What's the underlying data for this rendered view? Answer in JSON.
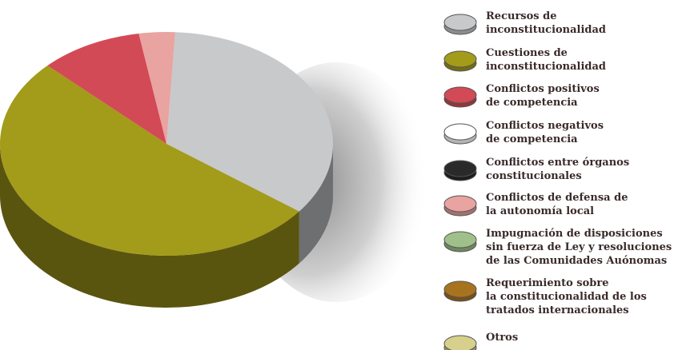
{
  "chart_data": {
    "type": "pie3d",
    "series": [
      {
        "name": "Recursos de\ninconstitucionalidad",
        "color": "#c8c9cb",
        "value": 34.5
      },
      {
        "name": "Cuestiones de\ninconstitucionalidad",
        "color": "#a39b1a",
        "value": 52
      },
      {
        "name": "Conflictos positivos\nde competencia",
        "color": "#d24a55",
        "value": 10
      },
      {
        "name": "Conflictos negativos\nde competencia",
        "color": "#ffffff",
        "value": 0
      },
      {
        "name": "Conflictos entre órganos\nconstitucionales",
        "color": "#2a2a2a",
        "value": 0
      },
      {
        "name": "Conflictos de defensa de\nla autonomía local",
        "color": "#e9a3a0",
        "value": 3.5
      },
      {
        "name": "Impugnación de disposiciones\nsin fuerza de Ley y resoluciones\nde las Comunidades Auónomas",
        "color": "#9fc08a",
        "value": 0
      },
      {
        "name": "Requerimiento sobre\nla constitucionalidad de los\ntratados internacionales",
        "color": "#a8731f",
        "value": 0
      },
      {
        "name": "Otros",
        "color": "#d6d08c",
        "value": 0
      }
    ]
  }
}
